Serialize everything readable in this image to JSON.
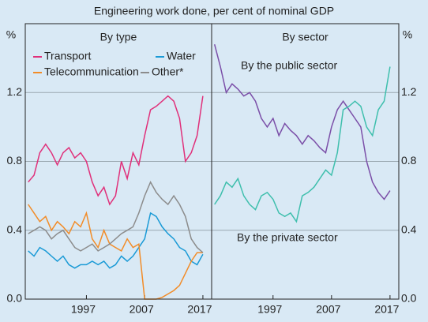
{
  "title": "Engineering work done, per cent of nominal GDP",
  "chart_data": [
    {
      "type": "line",
      "title": "By type",
      "ylabel": "%",
      "x": [
        1987,
        1988,
        1989,
        1990,
        1991,
        1992,
        1993,
        1994,
        1995,
        1996,
        1997,
        1998,
        1999,
        2000,
        2001,
        2002,
        2003,
        2004,
        2005,
        2006,
        2007,
        2008,
        2009,
        2010,
        2011,
        2012,
        2013,
        2014,
        2015,
        2016,
        2017
      ],
      "xlim": [
        1986.5,
        2018.5
      ],
      "xticks": [
        1997,
        2007,
        2017
      ],
      "ylim": [
        0,
        1.6
      ],
      "yticks": [
        {
          "value": 0,
          "label": "0.0"
        },
        0.4,
        0.8,
        1.2
      ],
      "grid": true,
      "series": [
        {
          "name": "Transport",
          "color": "#e0307a",
          "values": [
            0.68,
            0.72,
            0.85,
            0.9,
            0.85,
            0.78,
            0.85,
            0.88,
            0.82,
            0.85,
            0.8,
            0.68,
            0.6,
            0.65,
            0.55,
            0.6,
            0.8,
            0.7,
            0.85,
            0.78,
            0.95,
            1.1,
            1.12,
            1.15,
            1.18,
            1.15,
            1.05,
            0.8,
            0.85,
            0.95,
            1.18
          ]
        },
        {
          "name": "Water",
          "color": "#1a9ad6",
          "values": [
            0.28,
            0.25,
            0.3,
            0.28,
            0.25,
            0.22,
            0.25,
            0.2,
            0.18,
            0.2,
            0.2,
            0.22,
            0.2,
            0.22,
            0.18,
            0.2,
            0.25,
            0.22,
            0.25,
            0.3,
            0.35,
            0.5,
            0.48,
            0.42,
            0.38,
            0.35,
            0.3,
            0.28,
            0.22,
            0.2,
            0.26
          ]
        },
        {
          "name": "Telecommunication",
          "color": "#f28c28",
          "values": [
            0.55,
            0.5,
            0.45,
            0.48,
            0.4,
            0.45,
            0.42,
            0.38,
            0.45,
            0.42,
            0.5,
            0.35,
            0.3,
            0.4,
            0.32,
            0.3,
            0.28,
            0.35,
            0.3,
            0.32,
            0,
            0,
            0,
            0.01,
            0.03,
            0.05,
            0.08,
            0.15,
            0.22,
            0.27,
            0.27
          ]
        },
        {
          "name": "Other*",
          "color": "#8c8c8c",
          "values": [
            0.38,
            0.4,
            0.42,
            0.4,
            0.35,
            0.38,
            0.4,
            0.35,
            0.3,
            0.28,
            0.3,
            0.32,
            0.28,
            0.3,
            0.32,
            0.35,
            0.38,
            0.4,
            0.42,
            0.5,
            0.6,
            0.68,
            0.62,
            0.58,
            0.55,
            0.6,
            0.55,
            0.48,
            0.35,
            0.3,
            0.27
          ]
        }
      ]
    },
    {
      "type": "line",
      "title": "By sector",
      "ylabel": "%",
      "x": [
        1987,
        1988,
        1989,
        1990,
        1991,
        1992,
        1993,
        1994,
        1995,
        1996,
        1997,
        1998,
        1999,
        2000,
        2001,
        2002,
        2003,
        2004,
        2005,
        2006,
        2007,
        2008,
        2009,
        2010,
        2011,
        2012,
        2013,
        2014,
        2015,
        2016,
        2017
      ],
      "xlim": [
        1986.5,
        2018.5
      ],
      "xticks": [
        1997,
        2007,
        2017
      ],
      "ylim": [
        0,
        1.6
      ],
      "yticks": [
        {
          "value": 0,
          "label": "0.0"
        },
        0.4,
        0.8,
        1.2
      ],
      "grid": true,
      "series": [
        {
          "name": "By the public sector",
          "color": "#7b4fa8",
          "values": [
            1.48,
            1.35,
            1.2,
            1.25,
            1.22,
            1.18,
            1.2,
            1.15,
            1.05,
            1.0,
            1.05,
            0.95,
            1.02,
            0.98,
            0.95,
            0.9,
            0.95,
            0.92,
            0.88,
            0.85,
            1.0,
            1.1,
            1.15,
            1.1,
            1.05,
            1.0,
            0.8,
            0.68,
            0.62,
            0.58,
            0.63
          ]
        },
        {
          "name": "By the private sector",
          "color": "#3fbfad",
          "values": [
            0.55,
            0.6,
            0.68,
            0.65,
            0.7,
            0.6,
            0.55,
            0.52,
            0.6,
            0.62,
            0.58,
            0.5,
            0.48,
            0.5,
            0.45,
            0.6,
            0.62,
            0.65,
            0.7,
            0.75,
            0.72,
            0.85,
            1.1,
            1.12,
            1.15,
            1.12,
            1.0,
            0.95,
            1.1,
            1.15,
            1.35
          ]
        }
      ]
    }
  ]
}
